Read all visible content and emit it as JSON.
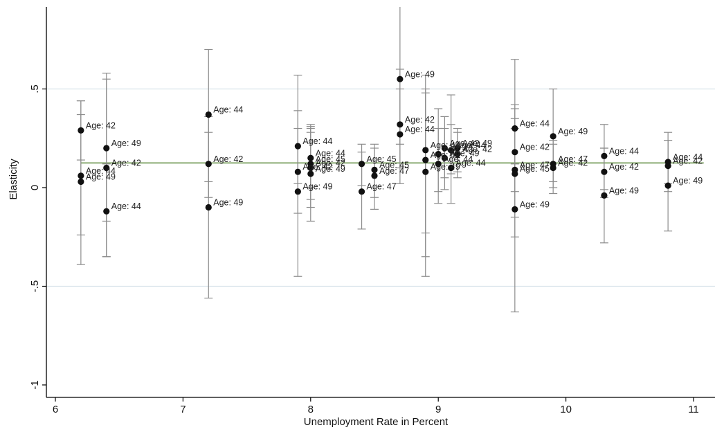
{
  "chart_data": {
    "type": "scatter",
    "xlabel": "Unemployment Rate in Percent",
    "ylabel": "Elasticity",
    "xlim": [
      5.97,
      11.08
    ],
    "ylim": [
      -1.05,
      0.92
    ],
    "x_ticks": [
      6,
      7,
      8,
      9,
      10,
      11
    ],
    "y_ticks": [
      {
        "value": 0.5,
        "label": ".5"
      },
      {
        "value": 0,
        "label": "0"
      },
      {
        "value": -0.5,
        "label": "-.5"
      },
      {
        "value": -1,
        "label": "-1"
      }
    ],
    "grid": "horizontal at .5 and -.5",
    "fit_line": {
      "y": 0.125,
      "x_start": 6.2,
      "x_end": 11.08
    },
    "points": [
      {
        "x": 6.2,
        "y": 0.29,
        "lo": 0.14,
        "hi": 0.44,
        "label": "Age: 42"
      },
      {
        "x": 6.2,
        "y": 0.06,
        "lo": -0.24,
        "hi": 0.37,
        "label": "Age: 44"
      },
      {
        "x": 6.2,
        "y": 0.03,
        "lo": -0.39,
        "hi": 0.44,
        "label": "Age: 49"
      },
      {
        "x": 6.4,
        "y": 0.2,
        "lo": -0.17,
        "hi": 0.58,
        "label": "Age: 49"
      },
      {
        "x": 6.4,
        "y": 0.1,
        "lo": -0.35,
        "hi": 0.55,
        "label": "Age: 42"
      },
      {
        "x": 6.4,
        "y": -0.12,
        "lo": -0.35,
        "hi": 0.12,
        "label": "Age: 44"
      },
      {
        "x": 7.2,
        "y": 0.37,
        "lo": 0.03,
        "hi": 0.7,
        "label": "Age: 44"
      },
      {
        "x": 7.2,
        "y": 0.12,
        "lo": -0.05,
        "hi": 0.28,
        "label": "Age: 42"
      },
      {
        "x": 7.2,
        "y": -0.1,
        "lo": -0.56,
        "hi": 0.36,
        "label": "Age: 49"
      },
      {
        "x": 7.9,
        "y": 0.21,
        "lo": 0.02,
        "hi": 0.39,
        "label": "Age: 44"
      },
      {
        "x": 7.9,
        "y": 0.08,
        "lo": -0.13,
        "hi": 0.3,
        "label": "Age: 42"
      },
      {
        "x": 7.9,
        "y": -0.02,
        "lo": -0.45,
        "hi": 0.57,
        "label": "Age: 49"
      },
      {
        "x": 8.0,
        "y": 0.15,
        "lo": 0.0,
        "hi": 0.31,
        "label": "Age: 44"
      },
      {
        "x": 8.0,
        "y": 0.12,
        "lo": -0.06,
        "hi": 0.3,
        "label": "Age: 45"
      },
      {
        "x": 8.0,
        "y": 0.1,
        "lo": -0.1,
        "hi": 0.28,
        "label": "Age: 42"
      },
      {
        "x": 8.0,
        "y": 0.07,
        "lo": -0.17,
        "hi": 0.32,
        "label": "Age: 49"
      },
      {
        "x": 8.4,
        "y": 0.12,
        "lo": 0.01,
        "hi": 0.22,
        "label": "Age: 45"
      },
      {
        "x": 8.4,
        "y": -0.02,
        "lo": -0.21,
        "hi": 0.18,
        "label": "Age: 47"
      },
      {
        "x": 8.5,
        "y": 0.09,
        "lo": -0.05,
        "hi": 0.22,
        "label": "Age: 45"
      },
      {
        "x": 8.5,
        "y": 0.06,
        "lo": -0.11,
        "hi": 0.2,
        "label": "Age: 47"
      },
      {
        "x": 8.7,
        "y": 0.55,
        "lo": 0.22,
        "hi": 0.92,
        "label": "Age: 49"
      },
      {
        "x": 8.7,
        "y": 0.32,
        "lo": 0.1,
        "hi": 0.6,
        "label": "Age: 42"
      },
      {
        "x": 8.7,
        "y": 0.27,
        "lo": 0.02,
        "hi": 0.5,
        "label": "Age: 44"
      },
      {
        "x": 8.9,
        "y": 0.19,
        "lo": -0.45,
        "hi": 0.57,
        "label": "Age: 44"
      },
      {
        "x": 8.9,
        "y": 0.14,
        "lo": -0.23,
        "hi": 0.5,
        "label": "Age: 42"
      },
      {
        "x": 8.9,
        "y": 0.08,
        "lo": -0.35,
        "hi": 0.48,
        "label": "Age: 49"
      },
      {
        "x": 9.0,
        "y": 0.17,
        "lo": -0.02,
        "hi": 0.4,
        "label": "Age: 42"
      },
      {
        "x": 9.0,
        "y": 0.12,
        "lo": -0.08,
        "hi": 0.3,
        "label": "Age: 44"
      },
      {
        "x": 9.05,
        "y": 0.2,
        "lo": 0.05,
        "hi": 0.36,
        "label": "Age: 42"
      },
      {
        "x": 9.05,
        "y": 0.15,
        "lo": -0.01,
        "hi": 0.3,
        "label": "Age: 49"
      },
      {
        "x": 9.1,
        "y": 0.19,
        "lo": 0.07,
        "hi": 0.32,
        "label": "Age: 44"
      },
      {
        "x": 9.1,
        "y": 0.1,
        "lo": -0.08,
        "hi": 0.47,
        "label": "Age: 44"
      },
      {
        "x": 9.15,
        "y": 0.2,
        "lo": 0.08,
        "hi": 0.3,
        "label": "Age: 49"
      },
      {
        "x": 9.15,
        "y": 0.17,
        "lo": 0.05,
        "hi": 0.28,
        "label": "Age: 42"
      },
      {
        "x": 9.6,
        "y": 0.3,
        "lo": 0.12,
        "hi": 0.65,
        "label": "Age: 44"
      },
      {
        "x": 9.6,
        "y": 0.18,
        "lo": -0.02,
        "hi": 0.42,
        "label": "Age: 42"
      },
      {
        "x": 9.6,
        "y": 0.09,
        "lo": -0.15,
        "hi": 0.3,
        "label": "Age: 47"
      },
      {
        "x": 9.6,
        "y": 0.07,
        "lo": -0.25,
        "hi": 0.35,
        "label": "Age: 45"
      },
      {
        "x": 9.6,
        "y": -0.11,
        "lo": -0.63,
        "hi": 0.4,
        "label": "Age: 49"
      },
      {
        "x": 9.9,
        "y": 0.26,
        "lo": 0.03,
        "hi": 0.5,
        "label": "Age: 49"
      },
      {
        "x": 9.9,
        "y": 0.12,
        "lo": 0.0,
        "hi": 0.24,
        "label": "Age: 47"
      },
      {
        "x": 9.9,
        "y": 0.1,
        "lo": -0.03,
        "hi": 0.22,
        "label": "Age: 42"
      },
      {
        "x": 10.3,
        "y": 0.16,
        "lo": -0.01,
        "hi": 0.32,
        "label": "Age: 44"
      },
      {
        "x": 10.3,
        "y": 0.08,
        "lo": -0.05,
        "hi": 0.2,
        "label": "Age: 42"
      },
      {
        "x": 10.3,
        "y": -0.04,
        "lo": -0.28,
        "hi": 0.2,
        "label": "Age: 49"
      },
      {
        "x": 10.8,
        "y": 0.13,
        "lo": 0.02,
        "hi": 0.24,
        "label": "Age: 44"
      },
      {
        "x": 10.8,
        "y": 0.11,
        "lo": -0.02,
        "hi": 0.28,
        "label": "Age: 42"
      },
      {
        "x": 10.8,
        "y": 0.01,
        "lo": -0.22,
        "hi": 0.24,
        "label": "Age: 49"
      }
    ]
  },
  "colors": {
    "axis": "#000000",
    "grid": "#d8e2ea",
    "marker": "#111111",
    "errorbar": "#8c8c8c",
    "fit_line": "#5b8a3a"
  }
}
